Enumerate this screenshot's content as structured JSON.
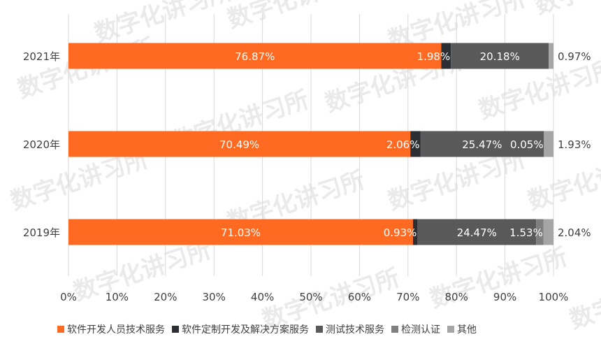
{
  "chart_data": {
    "type": "bar",
    "orientation": "horizontal",
    "stacked": true,
    "categories": [
      "2021年",
      "2020年",
      "2019年"
    ],
    "series": [
      {
        "name": "软件开发人员技术服务",
        "color": "#ff6a22",
        "values": [
          76.87,
          70.49,
          71.03
        ],
        "labels": [
          "76.87%",
          "70.49%",
          "71.03%"
        ]
      },
      {
        "name": "软件定制开发及解决方案服务",
        "color": "#2b2f33",
        "values": [
          1.98,
          2.06,
          0.93
        ],
        "labels": [
          "1.98%",
          "2.06%",
          "0.93%"
        ]
      },
      {
        "name": "测试技术服务",
        "color": "#595959",
        "values": [
          20.18,
          25.47,
          24.47
        ],
        "labels": [
          "20.18%",
          "25.47%",
          "24.47%"
        ]
      },
      {
        "name": "检测认证",
        "color": "#7f7f7f",
        "values": [
          0.0,
          0.05,
          1.53
        ],
        "labels": [
          "",
          "0.05%",
          "1.53%"
        ]
      },
      {
        "name": "其他",
        "color": "#a6a6a6",
        "values": [
          0.97,
          1.93,
          2.04
        ],
        "labels": [
          "0.97%",
          "1.93%",
          "2.04%"
        ]
      }
    ],
    "x_ticks": [
      "0%",
      "10%",
      "20%",
      "30%",
      "40%",
      "50%",
      "60%",
      "70%",
      "80%",
      "90%",
      "100%"
    ],
    "xlim": [
      0,
      100
    ],
    "grid": true,
    "legend_position": "bottom"
  },
  "watermark": "数字化讲习所"
}
